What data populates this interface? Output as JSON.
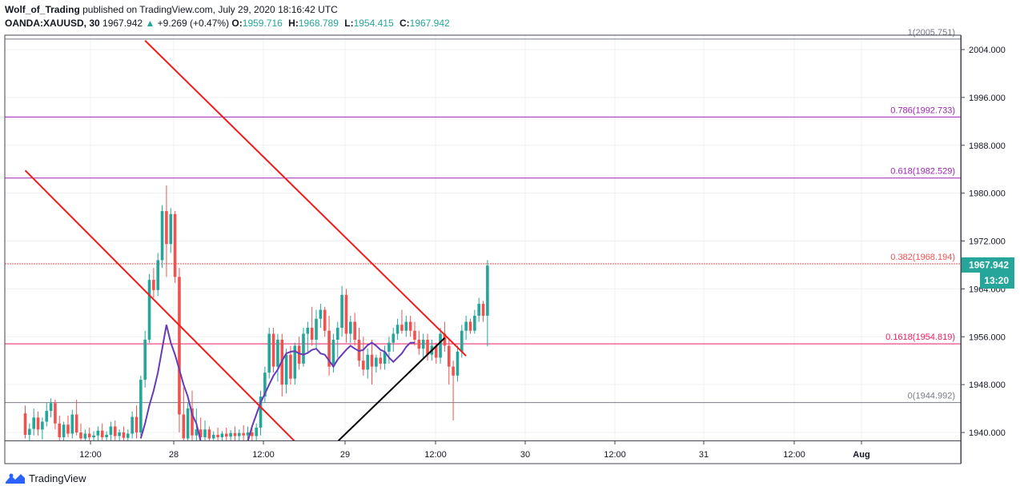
{
  "header": {
    "author": "Wolf_of_Trading",
    "published_text": "published on TradingView.com, July 29, 2020 18:16:42 UTC",
    "symbol": "OANDA:XAUUSD, 30",
    "last": "1967.942",
    "change": "+9.269 (+0.47%)",
    "change_arrow": "▲",
    "o_label": "O:",
    "o_value": "1959.716",
    "h_label": "H:",
    "h_value": "1968.789",
    "l_label": "L:",
    "l_value": "1954.415",
    "c_label": "C:",
    "c_value": "1967.942"
  },
  "footer": {
    "brand": "TradingView",
    "logo_icon": "tradingview-logo-icon"
  },
  "price_badge": {
    "value": "1967.942",
    "countdown": "13:20",
    "color": "#26a69a"
  },
  "colors": {
    "up": "#26a69a",
    "down": "#ef5350",
    "trend_red": "#f21b1b",
    "trend_black": "#000000",
    "fib_purple": "#9c27b0",
    "fib_pink": "#e91e63",
    "fib_orange": "#ef5350",
    "fib_gray": "#787b86",
    "ma": "#673ab7"
  },
  "chart_data": {
    "type": "candlestick",
    "x_ticks": [
      "12:00",
      "28",
      "12:00",
      "29",
      "12:00",
      "30",
      "12:00",
      "31",
      "12:00",
      "Aug"
    ],
    "y_ticks": [
      "2004.000",
      "1996.000",
      "1988.000",
      "1980.000",
      "1972.000",
      "1964.000",
      "1956.000",
      "1948.000",
      "1940.000"
    ],
    "ylim": [
      1938.5,
      2006.5
    ],
    "fib_levels": [
      {
        "label": "0.786(1992.733)",
        "price": 1992.733,
        "color": "#9c27b0"
      },
      {
        "label": "0.618(1982.529)",
        "price": 1982.529,
        "color": "#9c27b0"
      },
      {
        "label": "0.382(1968.194)",
        "price": 1968.194,
        "color": "#ef5350"
      },
      {
        "label": "0.1618(1954.819)",
        "price": 1954.819,
        "color": "#e91e63"
      },
      {
        "label": "0(1944.992)",
        "price": 1944.992,
        "color": "#787b86"
      }
    ],
    "top_level_partial": "1(2005.751)",
    "candles": [
      {
        "o": 1943.2,
        "h": 1944.5,
        "l": 1939.0,
        "c": 1939.6
      },
      {
        "o": 1939.6,
        "h": 1941.5,
        "l": 1938.5,
        "c": 1940.6
      },
      {
        "o": 1940.6,
        "h": 1944.0,
        "l": 1939.5,
        "c": 1942.5
      },
      {
        "o": 1942.5,
        "h": 1943.5,
        "l": 1939.5,
        "c": 1940.5
      },
      {
        "o": 1940.5,
        "h": 1942.5,
        "l": 1938.8,
        "c": 1941.8
      },
      {
        "o": 1941.8,
        "h": 1945.0,
        "l": 1941.0,
        "c": 1943.6
      },
      {
        "o": 1943.6,
        "h": 1945.7,
        "l": 1942.5,
        "c": 1944.9
      },
      {
        "o": 1944.9,
        "h": 1945.5,
        "l": 1940.5,
        "c": 1941.5
      },
      {
        "o": 1941.5,
        "h": 1942.8,
        "l": 1938.5,
        "c": 1939.2
      },
      {
        "o": 1939.2,
        "h": 1941.8,
        "l": 1938.5,
        "c": 1941.3
      },
      {
        "o": 1941.3,
        "h": 1942.8,
        "l": 1939.2,
        "c": 1939.8
      },
      {
        "o": 1939.8,
        "h": 1943.8,
        "l": 1939.0,
        "c": 1943.0
      },
      {
        "o": 1943.0,
        "h": 1945.5,
        "l": 1939.5,
        "c": 1940.0
      },
      {
        "o": 1940.0,
        "h": 1941.5,
        "l": 1938.5,
        "c": 1939.0
      },
      {
        "o": 1939.0,
        "h": 1940.5,
        "l": 1938.5,
        "c": 1939.8
      },
      {
        "o": 1939.8,
        "h": 1940.8,
        "l": 1938.5,
        "c": 1939.2
      },
      {
        "o": 1939.2,
        "h": 1940.2,
        "l": 1938.5,
        "c": 1939.5
      },
      {
        "o": 1939.5,
        "h": 1941.0,
        "l": 1938.5,
        "c": 1940.3
      },
      {
        "o": 1940.3,
        "h": 1941.5,
        "l": 1938.5,
        "c": 1939.2
      },
      {
        "o": 1939.2,
        "h": 1940.2,
        "l": 1938.5,
        "c": 1939.6
      },
      {
        "o": 1939.6,
        "h": 1941.8,
        "l": 1938.5,
        "c": 1941.0
      },
      {
        "o": 1941.0,
        "h": 1942.0,
        "l": 1938.5,
        "c": 1939.4
      },
      {
        "o": 1939.4,
        "h": 1940.5,
        "l": 1938.5,
        "c": 1940.0
      },
      {
        "o": 1940.0,
        "h": 1941.0,
        "l": 1938.5,
        "c": 1939.1
      },
      {
        "o": 1939.1,
        "h": 1940.5,
        "l": 1938.5,
        "c": 1939.8
      },
      {
        "o": 1939.8,
        "h": 1943.5,
        "l": 1939.0,
        "c": 1942.6
      },
      {
        "o": 1942.6,
        "h": 1944.5,
        "l": 1939.0,
        "c": 1940.0
      },
      {
        "o": 1940.0,
        "h": 1949.5,
        "l": 1939.5,
        "c": 1948.8
      },
      {
        "o": 1948.8,
        "h": 1957.0,
        "l": 1947.5,
        "c": 1955.5
      },
      {
        "o": 1955.5,
        "h": 1966.5,
        "l": 1955.0,
        "c": 1965.5
      },
      {
        "o": 1965.5,
        "h": 1967.5,
        "l": 1962.5,
        "c": 1963.8
      },
      {
        "o": 1963.8,
        "h": 1970.0,
        "l": 1962.8,
        "c": 1968.8
      },
      {
        "o": 1968.8,
        "h": 1978.0,
        "l": 1967.5,
        "c": 1977.0
      },
      {
        "o": 1977.0,
        "h": 1981.3,
        "l": 1966.0,
        "c": 1971.5
      },
      {
        "o": 1971.5,
        "h": 1977.5,
        "l": 1970.0,
        "c": 1976.5
      },
      {
        "o": 1976.5,
        "h": 1977.0,
        "l": 1965.0,
        "c": 1966.0
      },
      {
        "o": 1966.0,
        "h": 1967.5,
        "l": 1940.0,
        "c": 1943.0
      },
      {
        "o": 1943.0,
        "h": 1947.5,
        "l": 1938.5,
        "c": 1939.0
      },
      {
        "o": 1939.0,
        "h": 1945.0,
        "l": 1938.5,
        "c": 1944.0
      },
      {
        "o": 1944.0,
        "h": 1947.0,
        "l": 1938.5,
        "c": 1939.5
      },
      {
        "o": 1939.5,
        "h": 1944.0,
        "l": 1938.5,
        "c": 1940.5
      },
      {
        "o": 1940.5,
        "h": 1942.5,
        "l": 1938.5,
        "c": 1939.2
      },
      {
        "o": 1939.2,
        "h": 1942.0,
        "l": 1938.5,
        "c": 1940.5
      },
      {
        "o": 1940.5,
        "h": 1941.0,
        "l": 1938.5,
        "c": 1939.0
      },
      {
        "o": 1939.0,
        "h": 1940.2,
        "l": 1938.5,
        "c": 1939.6
      },
      {
        "o": 1939.6,
        "h": 1940.8,
        "l": 1938.5,
        "c": 1939.2
      },
      {
        "o": 1939.2,
        "h": 1940.2,
        "l": 1938.5,
        "c": 1939.8
      },
      {
        "o": 1939.8,
        "h": 1940.8,
        "l": 1938.5,
        "c": 1939.3
      },
      {
        "o": 1939.3,
        "h": 1940.4,
        "l": 1938.5,
        "c": 1939.9
      },
      {
        "o": 1939.9,
        "h": 1941.0,
        "l": 1938.5,
        "c": 1939.4
      },
      {
        "o": 1939.4,
        "h": 1940.5,
        "l": 1938.5,
        "c": 1939.9
      },
      {
        "o": 1939.9,
        "h": 1941.2,
        "l": 1938.5,
        "c": 1939.5
      },
      {
        "o": 1939.5,
        "h": 1941.0,
        "l": 1938.5,
        "c": 1940.0
      },
      {
        "o": 1940.0,
        "h": 1941.0,
        "l": 1938.5,
        "c": 1939.4
      },
      {
        "o": 1939.4,
        "h": 1941.5,
        "l": 1938.5,
        "c": 1940.8
      },
      {
        "o": 1940.8,
        "h": 1947.0,
        "l": 1939.5,
        "c": 1946.0
      },
      {
        "o": 1946.0,
        "h": 1951.0,
        "l": 1945.0,
        "c": 1950.0
      },
      {
        "o": 1950.0,
        "h": 1957.5,
        "l": 1949.0,
        "c": 1956.5
      },
      {
        "o": 1956.5,
        "h": 1957.5,
        "l": 1950.0,
        "c": 1951.0
      },
      {
        "o": 1951.0,
        "h": 1956.5,
        "l": 1948.5,
        "c": 1955.5
      },
      {
        "o": 1955.5,
        "h": 1956.5,
        "l": 1946.0,
        "c": 1948.0
      },
      {
        "o": 1948.0,
        "h": 1954.0,
        "l": 1946.5,
        "c": 1953.0
      },
      {
        "o": 1953.0,
        "h": 1954.5,
        "l": 1948.0,
        "c": 1949.0
      },
      {
        "o": 1949.0,
        "h": 1955.0,
        "l": 1948.0,
        "c": 1954.5
      },
      {
        "o": 1954.5,
        "h": 1956.0,
        "l": 1950.5,
        "c": 1951.5
      },
      {
        "o": 1951.5,
        "h": 1957.5,
        "l": 1951.0,
        "c": 1956.5
      },
      {
        "o": 1956.5,
        "h": 1958.5,
        "l": 1953.5,
        "c": 1957.5
      },
      {
        "o": 1957.5,
        "h": 1961.0,
        "l": 1954.5,
        "c": 1955.5
      },
      {
        "o": 1955.5,
        "h": 1960.5,
        "l": 1954.0,
        "c": 1959.0
      },
      {
        "o": 1959.0,
        "h": 1961.5,
        "l": 1957.5,
        "c": 1960.5
      },
      {
        "o": 1960.5,
        "h": 1961.0,
        "l": 1956.0,
        "c": 1957.0
      },
      {
        "o": 1957.0,
        "h": 1959.5,
        "l": 1949.5,
        "c": 1951.0
      },
      {
        "o": 1951.0,
        "h": 1956.5,
        "l": 1950.0,
        "c": 1955.5
      },
      {
        "o": 1955.5,
        "h": 1958.5,
        "l": 1952.5,
        "c": 1957.5
      },
      {
        "o": 1957.5,
        "h": 1964.5,
        "l": 1956.0,
        "c": 1963.0
      },
      {
        "o": 1963.0,
        "h": 1964.0,
        "l": 1955.0,
        "c": 1956.5
      },
      {
        "o": 1956.5,
        "h": 1959.5,
        "l": 1955.0,
        "c": 1958.5
      },
      {
        "o": 1958.5,
        "h": 1960.0,
        "l": 1954.5,
        "c": 1955.5
      },
      {
        "o": 1955.5,
        "h": 1957.5,
        "l": 1951.0,
        "c": 1952.0
      },
      {
        "o": 1952.0,
        "h": 1956.0,
        "l": 1949.5,
        "c": 1950.5
      },
      {
        "o": 1950.5,
        "h": 1954.0,
        "l": 1949.0,
        "c": 1953.0
      },
      {
        "o": 1953.0,
        "h": 1955.5,
        "l": 1948.0,
        "c": 1951.0
      },
      {
        "o": 1951.0,
        "h": 1953.0,
        "l": 1950.0,
        "c": 1952.5
      },
      {
        "o": 1952.5,
        "h": 1953.5,
        "l": 1950.5,
        "c": 1951.5
      },
      {
        "o": 1951.5,
        "h": 1954.5,
        "l": 1950.5,
        "c": 1953.5
      },
      {
        "o": 1953.5,
        "h": 1956.0,
        "l": 1951.5,
        "c": 1955.0
      },
      {
        "o": 1955.0,
        "h": 1957.5,
        "l": 1953.5,
        "c": 1956.5
      },
      {
        "o": 1956.5,
        "h": 1959.0,
        "l": 1955.5,
        "c": 1958.0
      },
      {
        "o": 1958.0,
        "h": 1960.5,
        "l": 1956.5,
        "c": 1957.0
      },
      {
        "o": 1957.0,
        "h": 1959.5,
        "l": 1956.0,
        "c": 1958.5
      },
      {
        "o": 1958.5,
        "h": 1959.5,
        "l": 1956.0,
        "c": 1957.0
      },
      {
        "o": 1957.0,
        "h": 1958.5,
        "l": 1954.5,
        "c": 1955.5
      },
      {
        "o": 1955.5,
        "h": 1957.0,
        "l": 1953.0,
        "c": 1954.0
      },
      {
        "o": 1954.0,
        "h": 1956.5,
        "l": 1952.5,
        "c": 1955.5
      },
      {
        "o": 1955.5,
        "h": 1956.5,
        "l": 1952.0,
        "c": 1953.0
      },
      {
        "o": 1953.0,
        "h": 1955.5,
        "l": 1952.0,
        "c": 1954.5
      },
      {
        "o": 1954.5,
        "h": 1955.0,
        "l": 1951.5,
        "c": 1952.5
      },
      {
        "o": 1952.5,
        "h": 1957.5,
        "l": 1951.5,
        "c": 1956.5
      },
      {
        "o": 1956.5,
        "h": 1958.5,
        "l": 1953.5,
        "c": 1954.5
      },
      {
        "o": 1954.5,
        "h": 1955.5,
        "l": 1948.0,
        "c": 1951.0
      },
      {
        "o": 1951.0,
        "h": 1952.0,
        "l": 1942.0,
        "c": 1949.5
      },
      {
        "o": 1949.5,
        "h": 1954.5,
        "l": 1948.5,
        "c": 1953.5
      },
      {
        "o": 1953.5,
        "h": 1958.0,
        "l": 1952.5,
        "c": 1957.0
      },
      {
        "o": 1957.0,
        "h": 1959.5,
        "l": 1955.5,
        "c": 1958.5
      },
      {
        "o": 1958.5,
        "h": 1959.0,
        "l": 1956.5,
        "c": 1957.0
      },
      {
        "o": 1957.0,
        "h": 1960.5,
        "l": 1956.5,
        "c": 1959.5
      },
      {
        "o": 1959.5,
        "h": 1962.5,
        "l": 1958.5,
        "c": 1961.5
      },
      {
        "o": 1961.5,
        "h": 1962.0,
        "l": 1958.5,
        "c": 1959.5
      },
      {
        "o": 1959.5,
        "h": 1968.8,
        "l": 1954.4,
        "c": 1967.9
      }
    ],
    "ma_series": [
      {
        "i": 27,
        "v": 1939.0
      },
      {
        "i": 28,
        "v": 1941.5
      },
      {
        "i": 29,
        "v": 1944.5
      },
      {
        "i": 30,
        "v": 1947.0
      },
      {
        "i": 31,
        "v": 1950.0
      },
      {
        "i": 32,
        "v": 1954.0
      },
      {
        "i": 33,
        "v": 1958.0
      },
      {
        "i": 34,
        "v": 1955.0
      },
      {
        "i": 35,
        "v": 1953.0
      },
      {
        "i": 36,
        "v": 1950.5
      },
      {
        "i": 37,
        "v": 1948.0
      },
      {
        "i": 38,
        "v": 1946.0
      },
      {
        "i": 39,
        "v": 1943.0
      },
      {
        "i": 40,
        "v": 1941.5
      },
      {
        "i": 41,
        "v": 1938.5
      },
      {
        "i": 52,
        "v": 1938.5
      },
      {
        "i": 53,
        "v": 1941.0
      },
      {
        "i": 54,
        "v": 1943.0
      },
      {
        "i": 55,
        "v": 1945.0
      },
      {
        "i": 56,
        "v": 1946.5
      },
      {
        "i": 57,
        "v": 1948.0
      },
      {
        "i": 58,
        "v": 1949.5
      },
      {
        "i": 59,
        "v": 1950.5
      },
      {
        "i": 60,
        "v": 1952.0
      },
      {
        "i": 61,
        "v": 1953.2
      },
      {
        "i": 62,
        "v": 1953.5
      },
      {
        "i": 63,
        "v": 1953.6
      },
      {
        "i": 64,
        "v": 1953.2
      },
      {
        "i": 65,
        "v": 1953.0
      },
      {
        "i": 66,
        "v": 1953.3
      },
      {
        "i": 67,
        "v": 1953.8
      },
      {
        "i": 68,
        "v": 1954.0
      },
      {
        "i": 69,
        "v": 1953.2
      },
      {
        "i": 70,
        "v": 1953.0
      },
      {
        "i": 71,
        "v": 1952.0
      },
      {
        "i": 72,
        "v": 1951.0
      },
      {
        "i": 73,
        "v": 1952.2
      },
      {
        "i": 74,
        "v": 1953.0
      },
      {
        "i": 75,
        "v": 1953.8
      },
      {
        "i": 76,
        "v": 1954.5
      },
      {
        "i": 77,
        "v": 1954.0
      },
      {
        "i": 78,
        "v": 1953.6
      },
      {
        "i": 79,
        "v": 1953.8
      },
      {
        "i": 80,
        "v": 1954.6
      },
      {
        "i": 81,
        "v": 1955.0
      },
      {
        "i": 82,
        "v": 1954.5
      },
      {
        "i": 83,
        "v": 1953.8
      },
      {
        "i": 84,
        "v": 1953.5
      },
      {
        "i": 85,
        "v": 1952.5
      },
      {
        "i": 86,
        "v": 1951.8
      },
      {
        "i": 87,
        "v": 1952.5
      },
      {
        "i": 88,
        "v": 1953.2
      },
      {
        "i": 89,
        "v": 1954.3
      },
      {
        "i": 90,
        "v": 1955.0
      },
      {
        "i": 91,
        "v": 1955.0
      }
    ],
    "trendlines": [
      {
        "name": "red-upper",
        "color": "#f21b1b",
        "x1": 28,
        "y1": 2005.5,
        "x2": 103,
        "y2": 1952.8
      },
      {
        "name": "red-lower",
        "color": "#f21b1b",
        "x1": 0,
        "y1": 1983.8,
        "x2": 63,
        "y2": 1938.5
      },
      {
        "name": "black-support",
        "color": "#000000",
        "x1": 73,
        "y1": 1938.5,
        "x2": 98,
        "y2": 1955.8
      }
    ]
  }
}
